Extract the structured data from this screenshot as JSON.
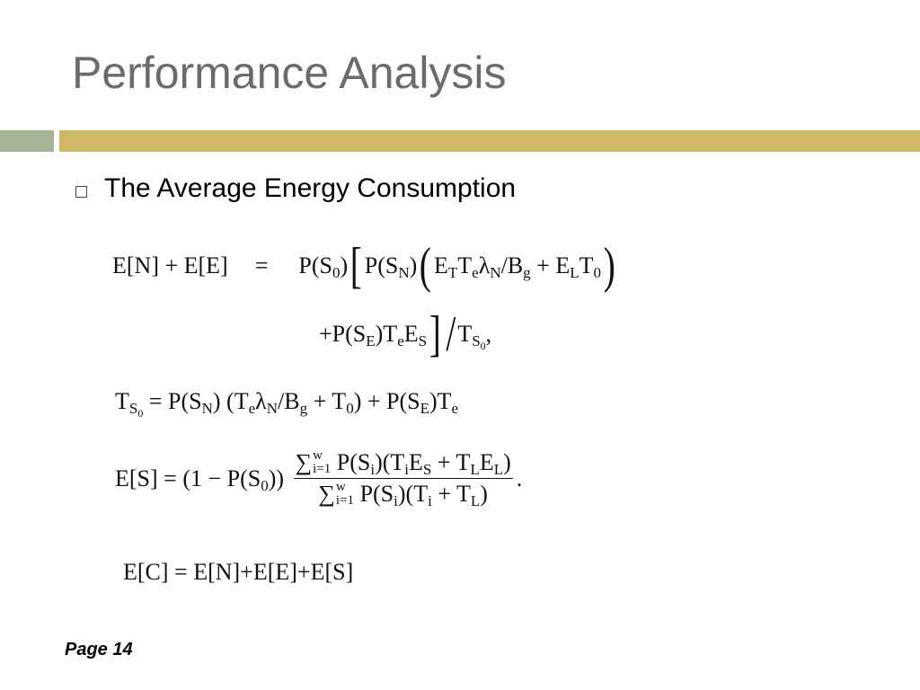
{
  "title": "Performance Analysis",
  "bullet": "The Average Energy Consumption",
  "equations": [
    {
      "lines": [
        [
          {
            "t": "E[N] + E[E]"
          },
          {
            "t": "="
          },
          {
            "t": "P(S"
          },
          {
            "t": "0",
            "s": "sub"
          },
          {
            "t": ")"
          },
          {
            "t": "[",
            "s": "big"
          },
          {
            "t": "P(S"
          },
          {
            "t": "N",
            "s": "sub"
          },
          {
            "t": ")"
          },
          {
            "t": "(",
            "s": "big"
          },
          {
            "t": "E"
          },
          {
            "t": "T",
            "s": "sub"
          },
          {
            "t": "T"
          },
          {
            "t": "e",
            "s": "sub"
          },
          {
            "t": "λ"
          },
          {
            "t": "N",
            "s": "sub"
          },
          {
            "t": "/B"
          },
          {
            "t": "g",
            "s": "sub"
          },
          {
            "t": " + E"
          },
          {
            "t": "L",
            "s": "sub"
          },
          {
            "t": "T"
          },
          {
            "t": "0",
            "s": "sub"
          },
          {
            "t": ")",
            "s": "big"
          }
        ],
        [
          {
            "t": "+P(S"
          },
          {
            "t": "E",
            "s": "sub"
          },
          {
            "t": ")T"
          },
          {
            "t": "e",
            "s": "sub"
          },
          {
            "t": "E"
          },
          {
            "t": "S",
            "s": "sub"
          },
          {
            "t": "]",
            "s": "big"
          },
          {
            "t": "/",
            "s": "big"
          },
          {
            "t": "T"
          },
          {
            "t": "S",
            "s": "sub"
          },
          {
            "t": "0",
            "s": "subsub"
          },
          {
            "t": ","
          }
        ]
      ]
    },
    {
      "lines": [
        [
          {
            "t": "T"
          },
          {
            "t": "S",
            "s": "sub"
          },
          {
            "t": "0",
            "s": "subsub"
          },
          {
            "t": " = P(S"
          },
          {
            "t": "N",
            "s": "sub"
          },
          {
            "t": ") (T"
          },
          {
            "t": "e",
            "s": "sub"
          },
          {
            "t": "λ"
          },
          {
            "t": "N",
            "s": "sub"
          },
          {
            "t": "/B"
          },
          {
            "t": "g",
            "s": "sub"
          },
          {
            "t": " + T"
          },
          {
            "t": "0",
            "s": "sub"
          },
          {
            "t": ") + P(S"
          },
          {
            "t": "E",
            "s": "sub"
          },
          {
            "t": ")T"
          },
          {
            "t": "e",
            "s": "sub"
          }
        ]
      ]
    },
    {
      "lines": [
        [
          {
            "t": "E[S] = (1 − P(S"
          },
          {
            "t": "0",
            "s": "sub"
          },
          {
            "t": ")) "
          },
          {
            "s": "frac",
            "num": [
              {
                "t": "∑"
              },
              {
                "s": "lim",
                "sup": "w",
                "sub": "i=1"
              },
              {
                "t": " P(S"
              },
              {
                "t": "i",
                "s": "sub"
              },
              {
                "t": ")(T"
              },
              {
                "t": "i",
                "s": "sub"
              },
              {
                "t": "E"
              },
              {
                "t": "S",
                "s": "sub"
              },
              {
                "t": " + T"
              },
              {
                "t": "L",
                "s": "sub"
              },
              {
                "t": "E"
              },
              {
                "t": "L",
                "s": "sub"
              },
              {
                "t": ")"
              }
            ],
            "den": [
              {
                "t": "∑"
              },
              {
                "s": "lim",
                "sup": "w",
                "sub": "i=1"
              },
              {
                "t": " P(S"
              },
              {
                "t": "i",
                "s": "sub"
              },
              {
                "t": ")(T"
              },
              {
                "t": "i",
                "s": "sub"
              },
              {
                "t": " + T"
              },
              {
                "t": "L",
                "s": "sub"
              },
              {
                "t": ")"
              }
            ]
          },
          {
            "t": "."
          }
        ]
      ]
    },
    {
      "lines": [
        [
          {
            "t": "E[C] = E[N]+E[E]+E[S]"
          }
        ]
      ]
    }
  ],
  "footer": "Page 14"
}
